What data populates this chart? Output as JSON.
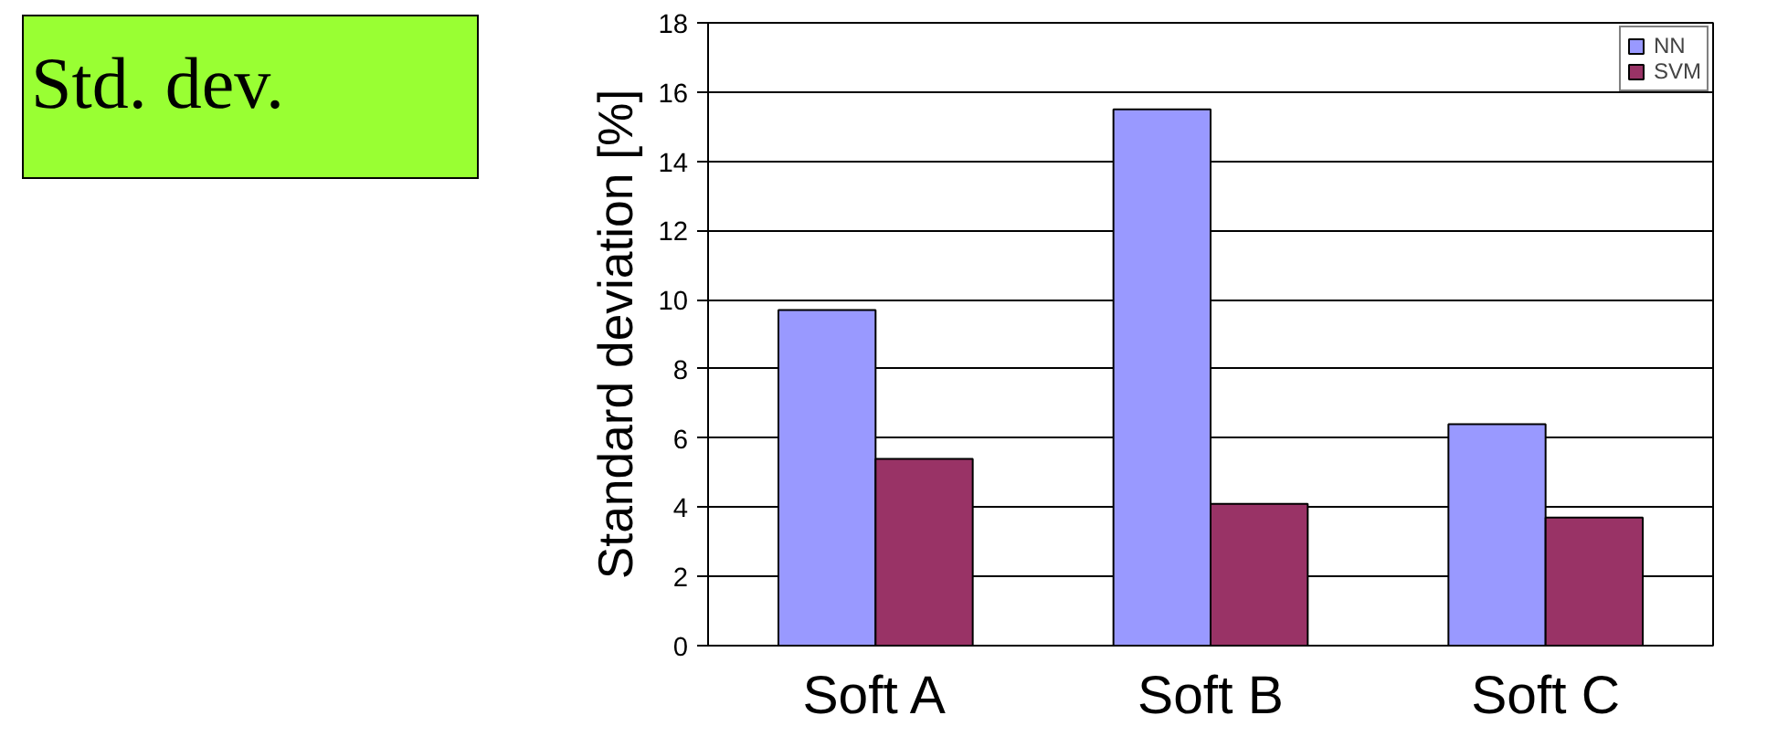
{
  "chart_data": {
    "type": "bar",
    "title": "Std. dev.",
    "ylabel": "Standard deviation [%]",
    "categories": [
      "Soft A",
      "Soft B",
      "Soft C"
    ],
    "series": [
      {
        "name": "NN",
        "color": "#9999ff",
        "values": [
          9.7,
          15.5,
          6.4
        ]
      },
      {
        "name": "SVM",
        "color": "#993366",
        "values": [
          5.4,
          4.1,
          3.7
        ]
      }
    ],
    "ylim": [
      0,
      18
    ],
    "yticks": [
      0,
      2,
      4,
      6,
      8,
      10,
      12,
      14,
      16,
      18
    ],
    "grid": "y",
    "legend": "top right"
  }
}
